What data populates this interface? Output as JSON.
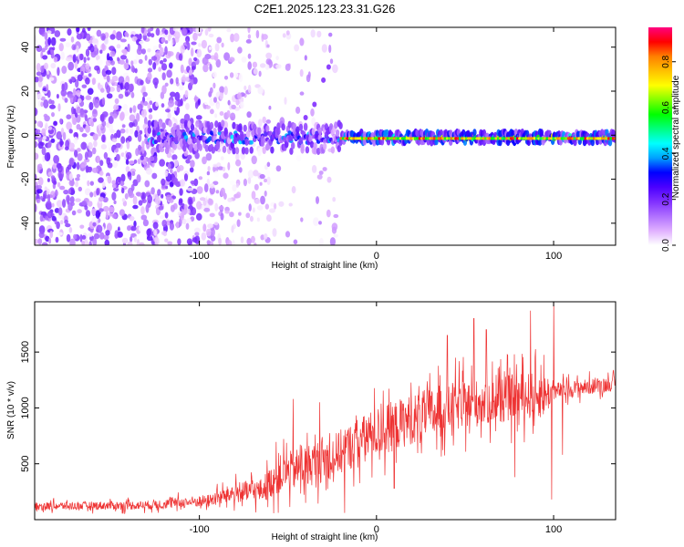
{
  "figure": {
    "title": "C2E1.2025.123.23.31.G26"
  },
  "chart_data": [
    {
      "type": "heatmap",
      "name": "spectrogram",
      "xlabel": "Height of straight line (km)",
      "ylabel": "Frequency (Hz)",
      "xlim": [
        -193,
        135
      ],
      "ylim": [
        -50,
        49
      ],
      "xticks": [
        -100,
        0,
        100
      ],
      "xtick_labels": [
        "-100",
        "0",
        "100"
      ],
      "yticks": [
        -40,
        -20,
        0,
        20,
        40
      ],
      "ytick_labels": [
        "-40",
        "-20",
        "0",
        "20",
        "40"
      ],
      "colorbar": {
        "label": "Normalized spectral amplitude",
        "range": [
          0,
          0.95
        ],
        "ticks": [
          0,
          0.2,
          0.4,
          0.6,
          0.8
        ],
        "tick_labels": [
          "0.0",
          "0.2",
          "0.4",
          "0.6",
          "0.8"
        ],
        "colors": [
          "#ffffff",
          "#e0b0ff",
          "#b070ff",
          "#8030ff",
          "#4b00ff",
          "#0000ff",
          "#00a0ff",
          "#00ffff",
          "#00ff80",
          "#00ff00",
          "#80ff00",
          "#ffff00",
          "#ffc000",
          "#ff8000",
          "#ff0000",
          "#ff0080"
        ]
      },
      "noise_region": {
        "x_range": [
          -193,
          -20
        ],
        "freq_range": [
          -50,
          49
        ]
      },
      "band": {
        "start_x": -130,
        "center_hz": -1,
        "half_width_hz": 3
      },
      "feature_points": [
        {
          "x": -35,
          "y": 14
        },
        {
          "x": -30,
          "y": 25
        },
        {
          "x": -27,
          "y": 31
        },
        {
          "x": -40,
          "y": 8
        }
      ]
    },
    {
      "type": "line",
      "name": "snr",
      "xlabel": "Height of straight line (km)",
      "ylabel": "SNR (10 * v/v)",
      "xlim": [
        -193,
        135
      ],
      "ylim": [
        0,
        1950
      ],
      "xticks": [
        -100,
        0,
        100
      ],
      "xtick_labels": [
        "-100",
        "0",
        "100"
      ],
      "yticks": [
        500,
        1000,
        1500
      ],
      "ytick_labels": [
        "500",
        "1000",
        "1500"
      ],
      "color": "#ee3333",
      "envelope": [
        {
          "x": -193,
          "mean": 120,
          "spread": 70
        },
        {
          "x": -130,
          "mean": 130,
          "spread": 80
        },
        {
          "x": -95,
          "mean": 170,
          "spread": 110
        },
        {
          "x": -80,
          "mean": 240,
          "spread": 180
        },
        {
          "x": -65,
          "mean": 260,
          "spread": 220
        },
        {
          "x": -55,
          "mean": 400,
          "spread": 350
        },
        {
          "x": -40,
          "mean": 480,
          "spread": 380
        },
        {
          "x": -25,
          "mean": 560,
          "spread": 400
        },
        {
          "x": -10,
          "mean": 700,
          "spread": 420
        },
        {
          "x": 0,
          "mean": 780,
          "spread": 450
        },
        {
          "x": 20,
          "mean": 900,
          "spread": 450
        },
        {
          "x": 40,
          "mean": 1000,
          "spread": 450
        },
        {
          "x": 60,
          "mean": 1050,
          "spread": 420
        },
        {
          "x": 80,
          "mean": 1100,
          "spread": 420
        },
        {
          "x": 95,
          "mean": 1120,
          "spread": 420
        },
        {
          "x": 100,
          "mean": 1150,
          "spread": 160
        },
        {
          "x": 135,
          "mean": 1220,
          "spread": 130
        }
      ],
      "spikes": [
        {
          "x": 100,
          "y": 1950
        },
        {
          "x": 78,
          "y": 1900
        },
        {
          "x": 87,
          "y": 1870
        },
        {
          "x": 55,
          "y": 1800
        },
        {
          "x": 62,
          "y": 1700
        },
        {
          "x": 40,
          "y": 1650
        },
        {
          "x": -47,
          "y": 1080
        },
        {
          "x": -40,
          "y": 1050
        },
        {
          "x": -32,
          "y": 1050
        },
        {
          "x": 99,
          "y": 180
        },
        {
          "x": 78,
          "y": 380
        },
        {
          "x": 10,
          "y": 280
        },
        {
          "x": -18,
          "y": 60
        },
        {
          "x": -40,
          "y": 150
        },
        {
          "x": 105,
          "y": 580
        }
      ]
    }
  ]
}
